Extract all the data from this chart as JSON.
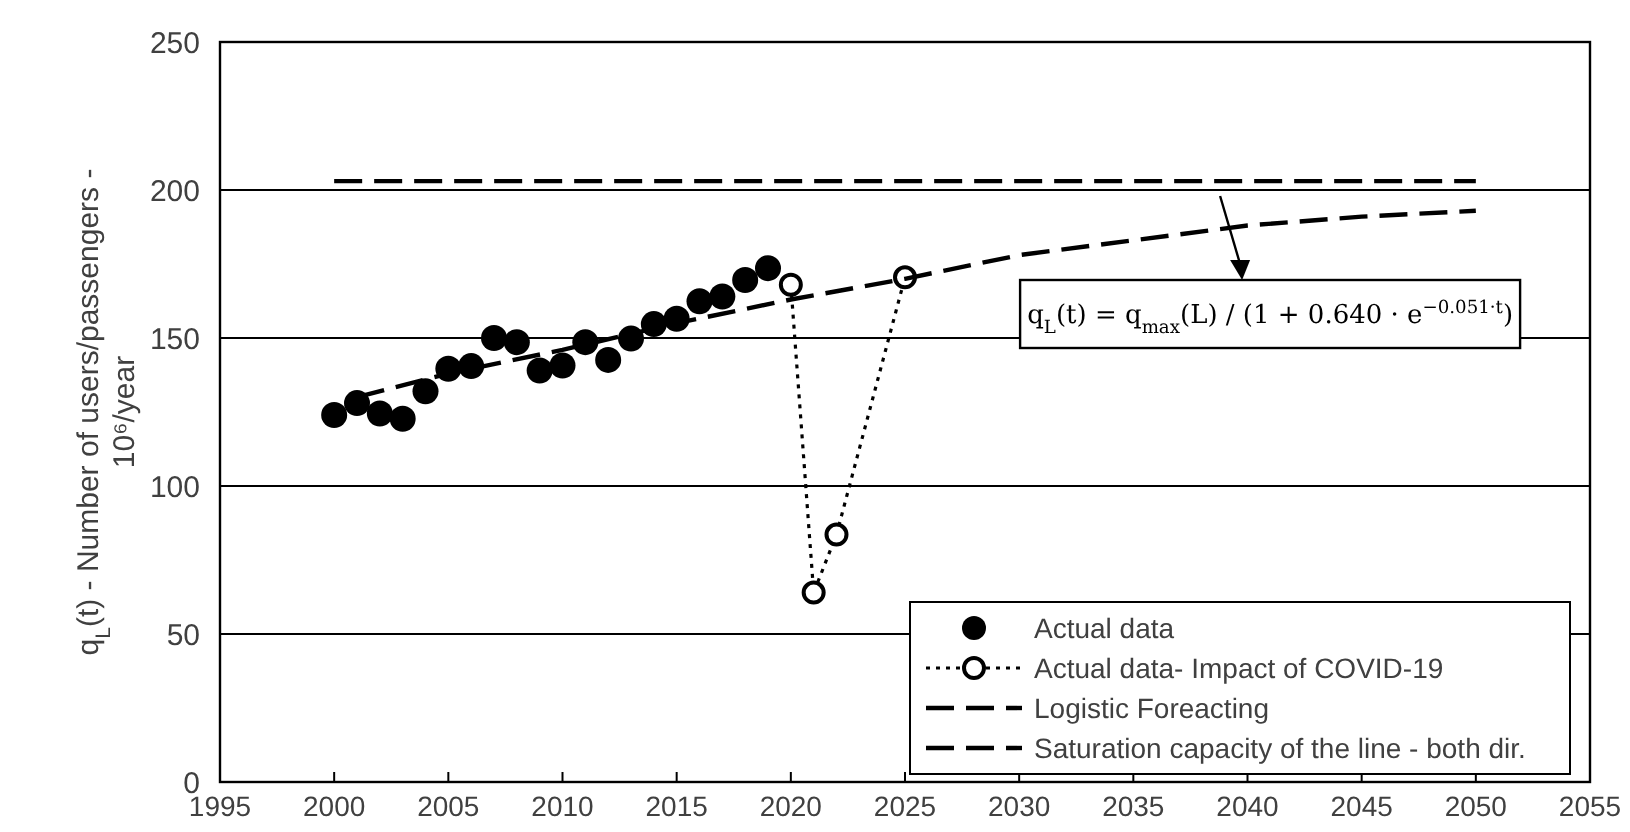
{
  "chart_data": {
    "type": "scatter",
    "ylabel": "q$_{L}$(t) - Number of users/passengers - 10⁶/year",
    "xlim": [
      1995,
      2055
    ],
    "xticks": [
      1995,
      2000,
      2005,
      2010,
      2015,
      2020,
      2025,
      2030,
      2035,
      2040,
      2045,
      2050,
      2055
    ],
    "ylim": [
      0,
      250
    ],
    "yticks": [
      0,
      50,
      100,
      150,
      200,
      250
    ],
    "grid": "y",
    "legend": "bottom right",
    "series": [
      {
        "name": "Actual data",
        "marker": "circle",
        "color": "#000000",
        "x": [
          2000,
          2001,
          2002,
          2003,
          2004,
          2005,
          2006,
          2007,
          2008,
          2009,
          2010,
          2011,
          2012,
          2013,
          2014,
          2015,
          2016,
          2017,
          2018,
          2019
        ],
        "values": [
          124,
          128,
          124.5,
          122.7,
          132,
          139.6,
          140.5,
          150,
          148.6,
          139,
          140.7,
          148.6,
          142.6,
          149.8,
          154.7,
          156.5,
          162.4,
          164,
          169.6,
          173.6
        ]
      },
      {
        "name": "Actual data- Impact of COVID-19",
        "type": "line",
        "marker": "circle",
        "line_style": "dotted",
        "color": "#000000",
        "x": [
          2020,
          2021,
          2022,
          2025
        ],
        "values": [
          168,
          64,
          83.6,
          170.5
        ]
      },
      {
        "name": "Logistic Foreacting",
        "type": "line",
        "marker": "none",
        "line_style": "dashed",
        "color": "#000000",
        "x": [
          2001,
          2005,
          2010,
          2015,
          2020,
          2025,
          2030,
          2035,
          2040,
          2045,
          2050
        ],
        "values": [
          130,
          138,
          146,
          155,
          163,
          170,
          178,
          183,
          188,
          191,
          193
        ]
      },
      {
        "name": "Saturation capacity  of the line - both dir.",
        "type": "line",
        "marker": "none",
        "line_style": "dashed",
        "color": "#000000",
        "x": [
          2000,
          2050
        ],
        "values": [
          203,
          203
        ]
      }
    ],
    "annotations": [
      "q$_{L}$(t) = q$_{max}$(L) / (1 + 0.640 · e$^{−0.051·t}$)"
    ]
  }
}
